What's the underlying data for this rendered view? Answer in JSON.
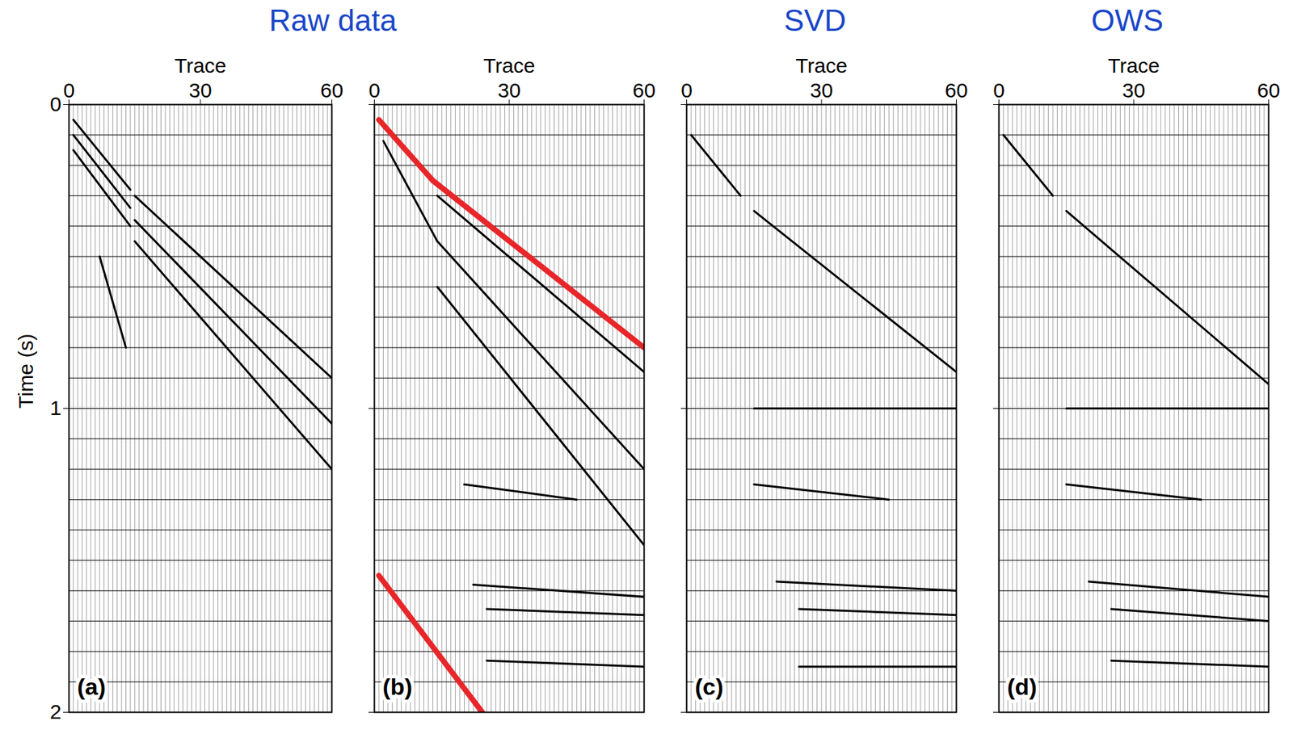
{
  "chart_data": [
    {
      "type": "line",
      "title": "Raw data",
      "panel": "(a)",
      "xlabel": "Trace",
      "ylabel": "Time (s)",
      "xlim": [
        0,
        60
      ],
      "xticks": [
        0,
        30,
        60
      ],
      "ylim": [
        2,
        0
      ],
      "yticks": [
        0,
        1,
        2
      ],
      "grid": true,
      "y_gridlines": [
        0,
        0.1,
        0.2,
        0.3,
        0.4,
        0.5,
        0.6,
        0.7,
        0.8,
        0.9,
        1.0,
        1.1,
        1.2,
        1.3,
        1.4,
        1.5,
        1.6,
        1.7,
        1.8,
        1.9,
        2.0
      ],
      "traces": [
        1,
        2,
        3,
        4,
        5,
        6,
        7,
        8,
        9,
        10,
        11,
        12,
        13,
        14,
        15,
        16,
        17,
        18,
        19,
        20,
        21,
        22,
        23,
        24,
        25,
        26,
        27,
        28,
        29,
        30,
        31,
        32,
        33,
        34,
        35,
        36,
        37,
        38,
        39,
        40,
        41,
        42,
        43,
        44,
        45,
        46,
        47,
        48,
        49,
        50,
        51,
        52,
        53,
        54,
        55,
        56,
        57,
        58,
        59,
        60
      ],
      "series": [
        {
          "color": "#000000",
          "line_style": "solid",
          "x": [
            1,
            14
          ],
          "values": [
            0.05,
            0.28
          ]
        },
        {
          "color": "#000000",
          "line_style": "solid",
          "x": [
            1,
            14
          ],
          "values": [
            0.1,
            0.34
          ]
        },
        {
          "color": "#000000",
          "line_style": "solid",
          "x": [
            1,
            14
          ],
          "values": [
            0.15,
            0.4
          ]
        },
        {
          "color": "#000000",
          "line_style": "solid",
          "x": [
            15,
            60
          ],
          "values": [
            0.3,
            0.9
          ]
        },
        {
          "color": "#000000",
          "line_style": "solid",
          "x": [
            15,
            60
          ],
          "values": [
            0.38,
            1.05
          ]
        },
        {
          "color": "#000000",
          "line_style": "solid",
          "x": [
            15,
            60
          ],
          "values": [
            0.45,
            1.2
          ]
        },
        {
          "color": "#000000",
          "line_style": "solid",
          "x": [
            7,
            13
          ],
          "values": [
            0.5,
            0.8
          ]
        }
      ]
    },
    {
      "type": "line",
      "panel": "(b)",
      "xlabel": "Trace",
      "tick_labels": "x",
      "xlim": [
        0,
        60
      ],
      "xticks": [
        0,
        30,
        60
      ],
      "ylim": [
        2,
        0
      ],
      "yticks": [
        0,
        1,
        2
      ],
      "grid": true,
      "y_gridlines": [
        0,
        0.1,
        0.2,
        0.3,
        0.4,
        0.5,
        0.6,
        0.7,
        0.8,
        0.9,
        1.0,
        1.1,
        1.2,
        1.3,
        1.4,
        1.5,
        1.6,
        1.7,
        1.8,
        1.9,
        2.0
      ],
      "traces": [
        1,
        2,
        3,
        4,
        5,
        6,
        7,
        8,
        9,
        10,
        11,
        12,
        13,
        14,
        15,
        16,
        17,
        18,
        19,
        20,
        21,
        22,
        23,
        24,
        25,
        26,
        27,
        28,
        29,
        30,
        31,
        32,
        33,
        34,
        35,
        36,
        37,
        38,
        39,
        40,
        41,
        42,
        43,
        44,
        45,
        46,
        47,
        48,
        49,
        50,
        51,
        52,
        53,
        54,
        55,
        56,
        57,
        58,
        59,
        60
      ],
      "series": [
        {
          "color": "#000000",
          "line_style": "solid",
          "x": [
            2,
            14
          ],
          "values": [
            0.12,
            0.45
          ]
        },
        {
          "color": "#000000",
          "line_style": "solid",
          "x": [
            14,
            60
          ],
          "values": [
            0.3,
            0.88
          ]
        },
        {
          "color": "#000000",
          "line_style": "solid",
          "x": [
            14,
            60
          ],
          "values": [
            0.45,
            1.2
          ]
        },
        {
          "color": "#000000",
          "line_style": "solid",
          "x": [
            14,
            60
          ],
          "values": [
            0.6,
            1.45
          ]
        },
        {
          "color": "#000000",
          "line_style": "solid",
          "x": [
            20,
            45
          ],
          "values": [
            1.25,
            1.3
          ]
        },
        {
          "color": "#000000",
          "line_style": "solid",
          "x": [
            22,
            60
          ],
          "values": [
            1.58,
            1.62
          ]
        },
        {
          "color": "#000000",
          "line_style": "solid",
          "x": [
            25,
            60
          ],
          "values": [
            1.66,
            1.68
          ]
        },
        {
          "color": "#000000",
          "line_style": "solid",
          "x": [
            25,
            60
          ],
          "values": [
            1.83,
            1.85
          ]
        },
        {
          "color": "#e8262a",
          "line_style": "solid",
          "x": [
            1,
            13,
            60
          ],
          "values": [
            0.05,
            0.25,
            0.8
          ]
        },
        {
          "color": "#e8262a",
          "line_style": "solid",
          "x": [
            1,
            24
          ],
          "values": [
            1.55,
            2.0
          ]
        }
      ]
    },
    {
      "type": "line",
      "title": "SVD",
      "panel": "(c)",
      "xlabel": "Trace",
      "tick_labels": "x",
      "xlim": [
        0,
        60
      ],
      "xticks": [
        0,
        30,
        60
      ],
      "ylim": [
        2,
        0
      ],
      "yticks": [
        0,
        1,
        2
      ],
      "grid": true,
      "y_gridlines": [
        0,
        0.1,
        0.2,
        0.3,
        0.4,
        0.5,
        0.6,
        0.7,
        0.8,
        0.9,
        1.0,
        1.1,
        1.2,
        1.3,
        1.4,
        1.5,
        1.6,
        1.7,
        1.8,
        1.9,
        2.0
      ],
      "traces": [
        1,
        2,
        3,
        4,
        5,
        6,
        7,
        8,
        9,
        10,
        11,
        12,
        13,
        14,
        15,
        16,
        17,
        18,
        19,
        20,
        21,
        22,
        23,
        24,
        25,
        26,
        27,
        28,
        29,
        30,
        31,
        32,
        33,
        34,
        35,
        36,
        37,
        38,
        39,
        40,
        41,
        42,
        43,
        44,
        45,
        46,
        47,
        48,
        49,
        50,
        51,
        52,
        53,
        54,
        55,
        56,
        57,
        58,
        59,
        60
      ],
      "series": [
        {
          "color": "#000000",
          "line_style": "solid",
          "x": [
            1,
            12
          ],
          "values": [
            0.1,
            0.3
          ]
        },
        {
          "color": "#000000",
          "line_style": "solid",
          "x": [
            15,
            60
          ],
          "values": [
            0.35,
            0.88
          ]
        },
        {
          "color": "#000000",
          "line_style": "solid",
          "x": [
            15,
            60
          ],
          "values": [
            1.0,
            1.0
          ]
        },
        {
          "color": "#000000",
          "line_style": "solid",
          "x": [
            15,
            45
          ],
          "values": [
            1.25,
            1.3
          ]
        },
        {
          "color": "#000000",
          "line_style": "solid",
          "x": [
            20,
            60
          ],
          "values": [
            1.57,
            1.6
          ]
        },
        {
          "color": "#000000",
          "line_style": "solid",
          "x": [
            25,
            60
          ],
          "values": [
            1.66,
            1.68
          ]
        },
        {
          "color": "#000000",
          "line_style": "solid",
          "x": [
            25,
            60
          ],
          "values": [
            1.85,
            1.85
          ]
        }
      ]
    },
    {
      "type": "line",
      "title": "OWS",
      "panel": "(d)",
      "xlabel": "Trace",
      "tick_labels": "x",
      "xlim": [
        0,
        60
      ],
      "xticks": [
        0,
        30,
        60
      ],
      "ylim": [
        2,
        0
      ],
      "yticks": [
        0,
        1,
        2
      ],
      "grid": true,
      "y_gridlines": [
        0,
        0.1,
        0.2,
        0.3,
        0.4,
        0.5,
        0.6,
        0.7,
        0.8,
        0.9,
        1.0,
        1.1,
        1.2,
        1.3,
        1.4,
        1.5,
        1.6,
        1.7,
        1.8,
        1.9,
        2.0
      ],
      "traces": [
        1,
        2,
        3,
        4,
        5,
        6,
        7,
        8,
        9,
        10,
        11,
        12,
        13,
        14,
        15,
        16,
        17,
        18,
        19,
        20,
        21,
        22,
        23,
        24,
        25,
        26,
        27,
        28,
        29,
        30,
        31,
        32,
        33,
        34,
        35,
        36,
        37,
        38,
        39,
        40,
        41,
        42,
        43,
        44,
        45,
        46,
        47,
        48,
        49,
        50,
        51,
        52,
        53,
        54,
        55,
        56,
        57,
        58,
        59,
        60
      ],
      "series": [
        {
          "color": "#000000",
          "line_style": "solid",
          "x": [
            1,
            12
          ],
          "values": [
            0.1,
            0.3
          ]
        },
        {
          "color": "#000000",
          "line_style": "solid",
          "x": [
            15,
            60
          ],
          "values": [
            0.35,
            0.92
          ]
        },
        {
          "color": "#000000",
          "line_style": "solid",
          "x": [
            15,
            60
          ],
          "values": [
            1.0,
            1.0
          ]
        },
        {
          "color": "#000000",
          "line_style": "solid",
          "x": [
            15,
            45
          ],
          "values": [
            1.25,
            1.3
          ]
        },
        {
          "color": "#000000",
          "line_style": "solid",
          "x": [
            20,
            60
          ],
          "values": [
            1.57,
            1.62
          ]
        },
        {
          "color": "#000000",
          "line_style": "solid",
          "x": [
            25,
            60
          ],
          "values": [
            1.66,
            1.7
          ]
        },
        {
          "color": "#000000",
          "line_style": "solid",
          "x": [
            25,
            60
          ],
          "values": [
            1.83,
            1.85
          ]
        }
      ]
    }
  ]
}
